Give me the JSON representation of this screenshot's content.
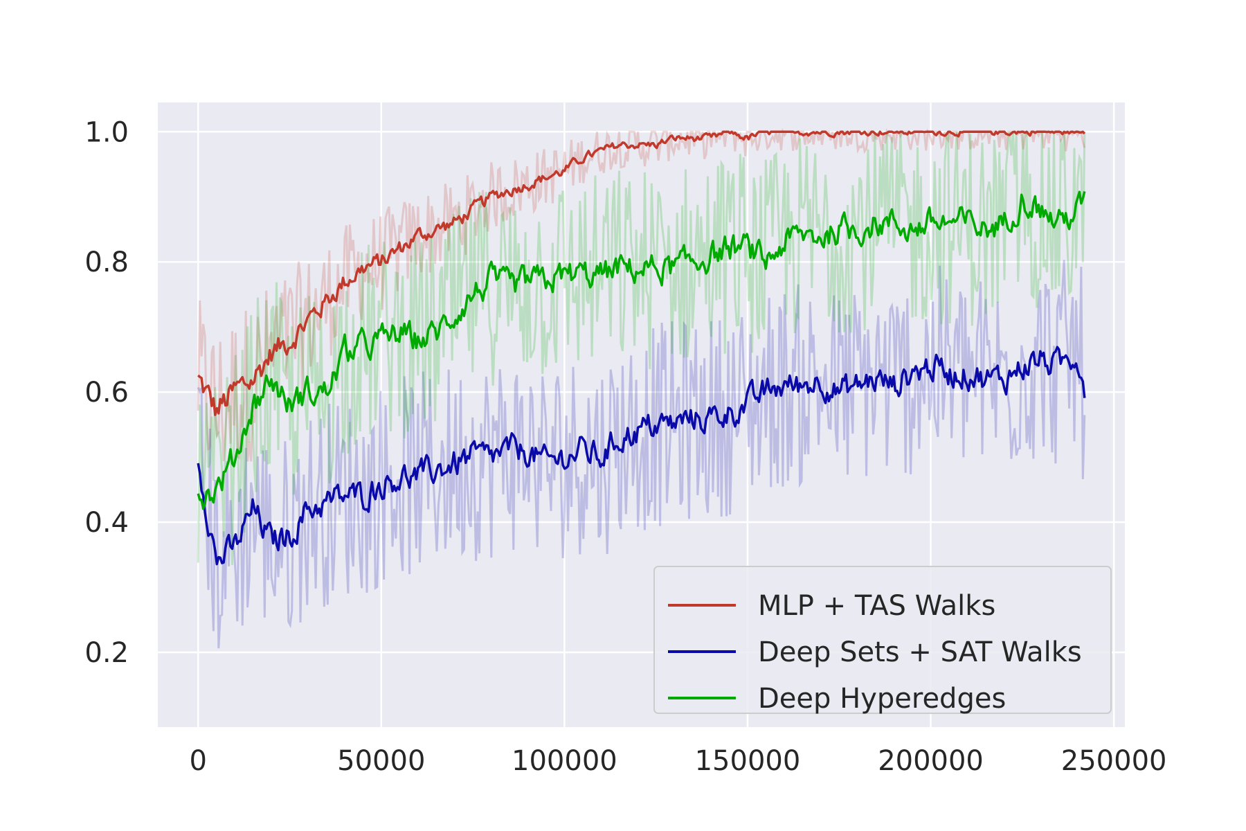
{
  "colors": {
    "background": "#eaeaf2",
    "grid": "#ffffff",
    "text": "#262626"
  },
  "chart_data": {
    "type": "line",
    "title": "",
    "xlabel": "",
    "ylabel": "",
    "xlim": [
      -11000,
      253000
    ],
    "ylim": [
      0.085,
      1.045
    ],
    "grid": true,
    "legend_position": "lower-right",
    "x_ticks": [
      0,
      50000,
      100000,
      150000,
      200000,
      250000
    ],
    "x_tick_labels": [
      "0",
      "50000",
      "100000",
      "150000",
      "200000",
      "250000"
    ],
    "y_ticks": [
      0.2,
      0.4,
      0.6,
      0.8,
      1.0
    ],
    "y_tick_labels": [
      "0.2",
      "0.4",
      "0.6",
      "0.8",
      "1.0"
    ],
    "x": [
      0,
      5000,
      10000,
      15000,
      20000,
      25000,
      30000,
      35000,
      40000,
      45000,
      50000,
      55000,
      60000,
      65000,
      70000,
      75000,
      80000,
      85000,
      90000,
      95000,
      100000,
      105000,
      110000,
      115000,
      120000,
      125000,
      130000,
      135000,
      140000,
      145000,
      150000,
      155000,
      160000,
      165000,
      170000,
      175000,
      180000,
      185000,
      190000,
      195000,
      200000,
      205000,
      210000,
      215000,
      220000,
      225000,
      230000,
      235000,
      240000,
      242000
    ],
    "series": [
      {
        "name": "MLP + TAS Walks",
        "color": "#c0392b",
        "values": [
          0.62,
          0.57,
          0.6,
          0.62,
          0.66,
          0.68,
          0.71,
          0.74,
          0.77,
          0.79,
          0.8,
          0.82,
          0.84,
          0.85,
          0.86,
          0.88,
          0.9,
          0.91,
          0.92,
          0.93,
          0.94,
          0.96,
          0.97,
          0.98,
          0.98,
          0.98,
          0.99,
          0.99,
          0.99,
          1.0,
          0.99,
          1.0,
          1.0,
          1.0,
          1.0,
          1.0,
          1.0,
          1.0,
          1.0,
          1.0,
          1.0,
          1.0,
          1.0,
          1.0,
          1.0,
          1.0,
          1.0,
          1.0,
          1.0,
          1.0
        ]
      },
      {
        "name": "Deep Sets + SAT Walks",
        "color": "#0a0aa8",
        "values": [
          0.5,
          0.34,
          0.36,
          0.42,
          0.37,
          0.38,
          0.42,
          0.43,
          0.44,
          0.44,
          0.46,
          0.47,
          0.47,
          0.48,
          0.49,
          0.5,
          0.5,
          0.51,
          0.51,
          0.49,
          0.5,
          0.51,
          0.5,
          0.53,
          0.54,
          0.55,
          0.55,
          0.56,
          0.56,
          0.57,
          0.58,
          0.6,
          0.61,
          0.61,
          0.62,
          0.6,
          0.61,
          0.62,
          0.61,
          0.63,
          0.64,
          0.63,
          0.63,
          0.62,
          0.62,
          0.64,
          0.65,
          0.64,
          0.66,
          0.61
        ]
      },
      {
        "name": "Deep Hyperedges",
        "color": "#00aa00",
        "values": [
          0.44,
          0.45,
          0.5,
          0.58,
          0.62,
          0.58,
          0.6,
          0.6,
          0.66,
          0.67,
          0.68,
          0.69,
          0.68,
          0.69,
          0.72,
          0.75,
          0.77,
          0.76,
          0.77,
          0.77,
          0.78,
          0.78,
          0.78,
          0.79,
          0.79,
          0.79,
          0.79,
          0.8,
          0.81,
          0.82,
          0.82,
          0.8,
          0.83,
          0.84,
          0.84,
          0.85,
          0.85,
          0.86,
          0.86,
          0.85,
          0.86,
          0.86,
          0.86,
          0.85,
          0.86,
          0.9,
          0.88,
          0.86,
          0.88,
          0.89
        ]
      }
    ]
  }
}
